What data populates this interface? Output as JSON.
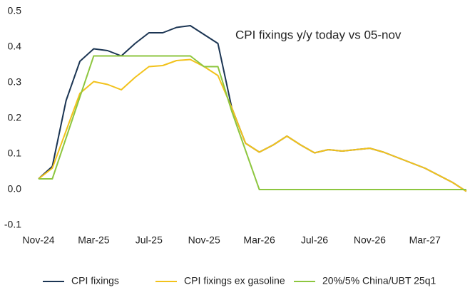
{
  "chart_data": {
    "type": "line",
    "title": "CPI fixings y/y today vs 05-nov",
    "categories": [
      "Nov-24",
      null,
      null,
      null,
      "Mar-25",
      null,
      null,
      null,
      "Jul-25",
      null,
      null,
      null,
      "Nov-25",
      null,
      null,
      null,
      "Mar-26",
      null,
      null,
      null,
      "Jul-26",
      null,
      null,
      null,
      "Nov-26",
      null,
      null,
      null,
      "Mar-27",
      null,
      null,
      null
    ],
    "series": [
      {
        "name": "CPI fixings",
        "color": "#1b3553",
        "values": [
          0.03,
          0.065,
          0.25,
          0.36,
          0.395,
          0.39,
          0.375,
          0.41,
          0.44,
          0.44,
          0.455,
          0.46,
          0.435,
          0.41,
          0.23,
          0.13,
          0.105,
          0.125,
          0.15,
          0.125,
          0.103,
          0.112,
          0.108,
          0.112,
          0.116,
          0.105,
          0.09,
          0.075,
          0.06,
          0.04,
          0.02,
          -0.005
        ]
      },
      {
        "name": "CPI fixings ex gasoline",
        "color": "#f2c21b",
        "values": [
          0.03,
          0.06,
          0.165,
          0.27,
          0.303,
          0.295,
          0.28,
          0.315,
          0.345,
          0.348,
          0.362,
          0.365,
          0.345,
          0.32,
          0.23,
          0.13,
          0.105,
          0.125,
          0.15,
          0.125,
          0.103,
          0.112,
          0.108,
          0.112,
          0.116,
          0.105,
          0.09,
          0.075,
          0.06,
          0.04,
          0.02,
          -0.005
        ]
      },
      {
        "name": "20%/5% China/UBT 25q1",
        "color": "#8dc63f",
        "values": [
          0.03,
          0.03,
          0.145,
          0.26,
          0.375,
          0.375,
          0.375,
          0.375,
          0.375,
          0.375,
          0.375,
          0.375,
          0.345,
          0.345,
          0.22,
          0.11,
          0,
          0,
          0,
          0,
          0,
          0,
          0,
          0,
          0,
          0,
          0,
          0,
          0,
          0,
          0,
          0
        ]
      }
    ],
    "ylim": [
      -0.1,
      0.5
    ],
    "yticks": [
      {
        "value": -0.1,
        "label": "-0.1"
      },
      {
        "value": 0,
        "label": "0.0"
      },
      0.1,
      0.2,
      0.3,
      0.4,
      0.5
    ],
    "legend": "bottom"
  }
}
